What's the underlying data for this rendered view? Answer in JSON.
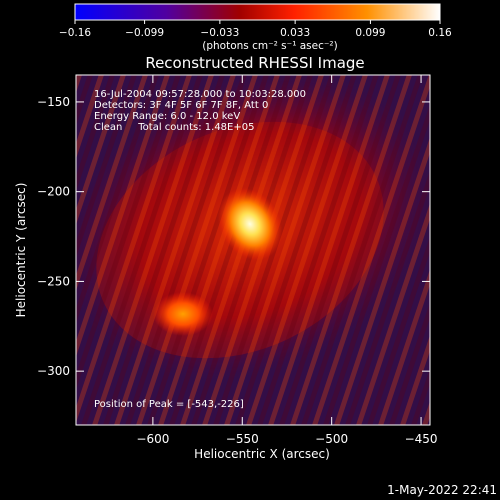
{
  "chart_data": {
    "type": "heatmap",
    "title": "Reconstructed RHESSI Image",
    "xlabel": "Heliocentric X (arcsec)",
    "ylabel": "Heliocentric Y (arcsec)",
    "xlim": [
      -643,
      -445
    ],
    "ylim": [
      -330,
      -135
    ],
    "x_ticks": [
      -600,
      -550,
      -500,
      -450
    ],
    "x_tick_labels": [
      "−600",
      "−550",
      "−500",
      "−450"
    ],
    "y_ticks": [
      -150,
      -200,
      -250,
      -300
    ],
    "y_tick_labels": [
      "−150",
      "−200",
      "−250",
      "−300"
    ],
    "colorbar": {
      "min": -0.16,
      "max": 0.16,
      "ticks": [
        -0.16,
        -0.099,
        -0.033,
        0.033,
        0.099,
        0.16
      ],
      "tick_labels": [
        "−0.16",
        "−0.099",
        "−0.033",
        "0.033",
        "0.099",
        "0.16"
      ],
      "unit_label": "(photons cm⁻² s⁻¹ asec⁻²)"
    },
    "annotations": [
      "16-Jul-2004 09:57:28.000 to 10:03:28.000",
      "Detectors: 3F 4F 5F 6F 7F 8F, Att 0",
      "Energy Range: 6.0 - 12.0 keV",
      "Clean     Total counts: 1.48E+05"
    ],
    "peak_label": "Position of Peak = [-543,-226]",
    "sources": [
      {
        "x": -543,
        "y": -226,
        "value": 0.16
      },
      {
        "x": -578,
        "y": -273,
        "value": 0.11
      }
    ],
    "timestamp": "1-May-2022 22:41"
  }
}
